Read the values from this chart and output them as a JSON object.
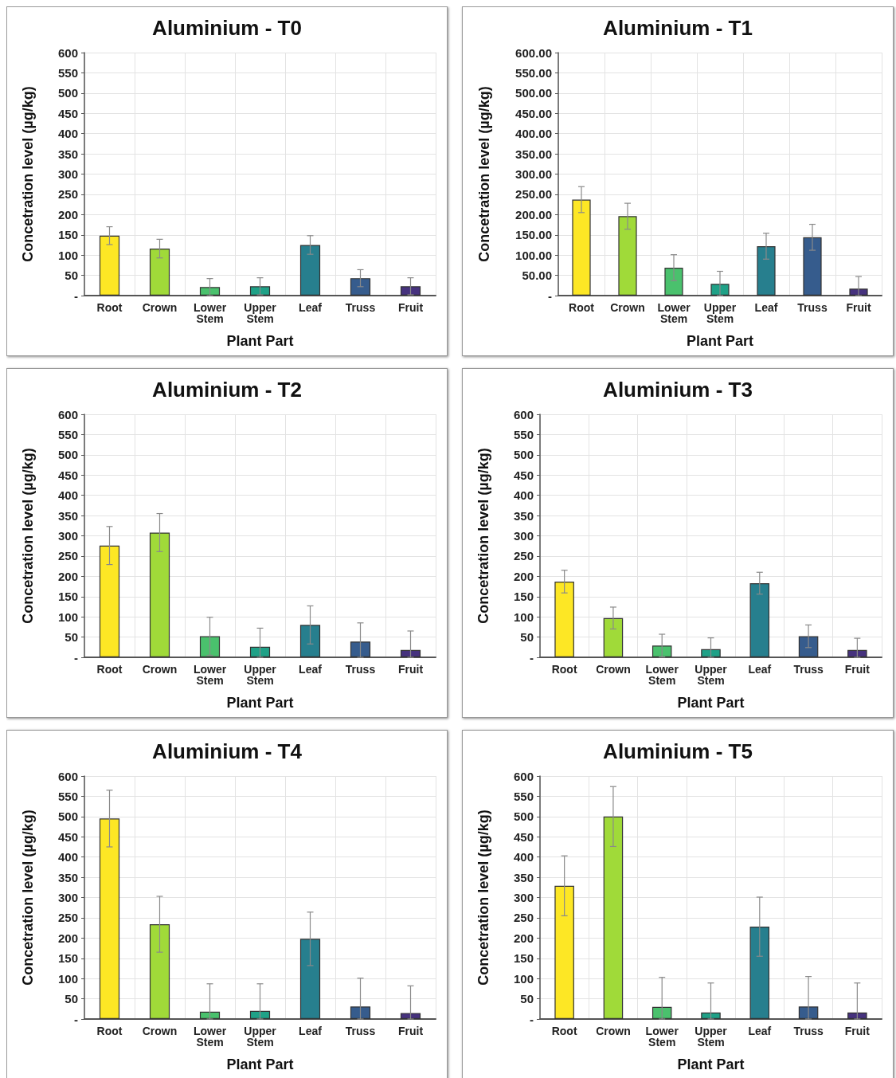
{
  "chart_data": [
    {
      "type": "bar",
      "title": "Aluminium - T0",
      "xlabel": "Plant Part",
      "ylabel": "Concetration level (µg/kg)",
      "categories": [
        "Root",
        "Crown",
        "Lower Stem",
        "Upper Stem",
        "Leaf",
        "Truss",
        "Fruit"
      ],
      "values": [
        148,
        116,
        21,
        23,
        125,
        43,
        23
      ],
      "errors": [
        22,
        23,
        21,
        21,
        23,
        21,
        21
      ],
      "colors": [
        "#fde725",
        "#a0da39",
        "#4ac16d",
        "#1fa187",
        "#277f8e",
        "#365c8d",
        "#46327e"
      ],
      "ylim": [
        0,
        600
      ],
      "yticks": [
        {
          "value": 0,
          "label": "-"
        },
        50,
        100,
        150,
        200,
        250,
        300,
        350,
        400,
        450,
        500,
        550,
        600
      ],
      "grid": true
    },
    {
      "type": "bar",
      "title": "Aluminium - T1",
      "xlabel": "Plant Part",
      "ylabel": "Concetration level (µg/kg)",
      "categories": [
        "Root",
        "Crown",
        "Lower Stem",
        "Upper Stem",
        "Leaf",
        "Truss",
        "Fruit"
      ],
      "values": [
        237,
        196,
        69,
        29,
        122,
        144,
        17
      ],
      "errors": [
        32,
        32,
        32,
        [
          0,
          60
        ],
        32,
        32,
        [
          0,
          47
        ]
      ],
      "colors": [
        "#fde725",
        "#a0da39",
        "#4ac16d",
        "#1fa187",
        "#277f8e",
        "#365c8d",
        "#46327e"
      ],
      "ylim": [
        0,
        600
      ],
      "yticks": [
        {
          "value": 0,
          "label": "-"
        },
        {
          "value": 50,
          "label": "50.00"
        },
        {
          "value": 100,
          "label": "100.00"
        },
        {
          "value": 150,
          "label": "150.00"
        },
        {
          "value": 200,
          "label": "200.00"
        },
        {
          "value": 250,
          "label": "250.00"
        },
        {
          "value": 300,
          "label": "300.00"
        },
        {
          "value": 350,
          "label": "350.00"
        },
        {
          "value": 400,
          "label": "400.00"
        },
        {
          "value": 450,
          "label": "450.00"
        },
        {
          "value": 500,
          "label": "500.00"
        },
        {
          "value": 550,
          "label": "550.00"
        },
        {
          "value": 600,
          "label": "600.00"
        }
      ],
      "grid": true
    },
    {
      "type": "bar",
      "title": "Aluminium - T2",
      "xlabel": "Plant Part",
      "ylabel": "Concetration level (µg/kg)",
      "categories": [
        "Root",
        "Crown",
        "Lower Stem",
        "Upper Stem",
        "Leaf",
        "Truss",
        "Fruit"
      ],
      "values": [
        276,
        308,
        52,
        26,
        80,
        39,
        18
      ],
      "errors": [
        47,
        47,
        47,
        [
          0,
          72
        ],
        47,
        [
          0,
          85
        ],
        [
          0,
          65
        ]
      ],
      "colors": [
        "#fde725",
        "#a0da39",
        "#4ac16d",
        "#1fa187",
        "#277f8e",
        "#365c8d",
        "#46327e"
      ],
      "ylim": [
        0,
        600
      ],
      "yticks": [
        {
          "value": 0,
          "label": "-"
        },
        50,
        100,
        150,
        200,
        250,
        300,
        350,
        400,
        450,
        500,
        550,
        600
      ],
      "grid": true
    },
    {
      "type": "bar",
      "title": "Aluminium - T3",
      "xlabel": "Plant Part",
      "ylabel": "Concetration level (µg/kg)",
      "categories": [
        "Root",
        "Crown",
        "Lower Stem",
        "Upper Stem",
        "Leaf",
        "Truss",
        "Fruit"
      ],
      "values": [
        187,
        97,
        29,
        20,
        183,
        52,
        18
      ],
      "errors": [
        28,
        27,
        28,
        [
          0,
          48
        ],
        27,
        28,
        [
          0,
          47
        ]
      ],
      "colors": [
        "#fde725",
        "#a0da39",
        "#4ac16d",
        "#1fa187",
        "#277f8e",
        "#365c8d",
        "#46327e"
      ],
      "ylim": [
        0,
        600
      ],
      "yticks": [
        {
          "value": 0,
          "label": "-"
        },
        50,
        100,
        150,
        200,
        250,
        300,
        350,
        400,
        450,
        500,
        550,
        600
      ],
      "grid": true
    },
    {
      "type": "bar",
      "title": "Aluminium - T4",
      "xlabel": "Plant Part",
      "ylabel": "Concetration level (µg/kg)",
      "categories": [
        "Root",
        "Crown",
        "Lower Stem",
        "Upper Stem",
        "Leaf",
        "Truss",
        "Fruit"
      ],
      "values": [
        495,
        234,
        18,
        20,
        198,
        31,
        15
      ],
      "errors": [
        70,
        69,
        [
          0,
          87
        ],
        [
          0,
          87
        ],
        66,
        [
          0,
          101
        ],
        [
          0,
          82
        ]
      ],
      "colors": [
        "#fde725",
        "#a0da39",
        "#4ac16d",
        "#1fa187",
        "#277f8e",
        "#365c8d",
        "#46327e"
      ],
      "ylim": [
        0,
        600
      ],
      "yticks": [
        {
          "value": 0,
          "label": "-"
        },
        50,
        100,
        150,
        200,
        250,
        300,
        350,
        400,
        450,
        500,
        550,
        600
      ],
      "grid": true
    },
    {
      "type": "bar",
      "title": "Aluminium - T5",
      "xlabel": "Plant Part",
      "ylabel": "Concetration level (µg/kg)",
      "categories": [
        "Root",
        "Crown",
        "Lower Stem",
        "Upper Stem",
        "Leaf",
        "Truss",
        "Fruit"
      ],
      "values": [
        329,
        500,
        30,
        16,
        228,
        31,
        16
      ],
      "errors": [
        74,
        74,
        [
          0,
          103
        ],
        [
          0,
          89
        ],
        73,
        [
          0,
          105
        ],
        [
          0,
          89
        ]
      ],
      "colors": [
        "#fde725",
        "#a0da39",
        "#4ac16d",
        "#1fa187",
        "#277f8e",
        "#365c8d",
        "#46327e"
      ],
      "ylim": [
        0,
        600
      ],
      "yticks": [
        {
          "value": 0,
          "label": "-"
        },
        50,
        100,
        150,
        200,
        250,
        300,
        350,
        400,
        450,
        500,
        550,
        600
      ],
      "grid": true
    }
  ]
}
